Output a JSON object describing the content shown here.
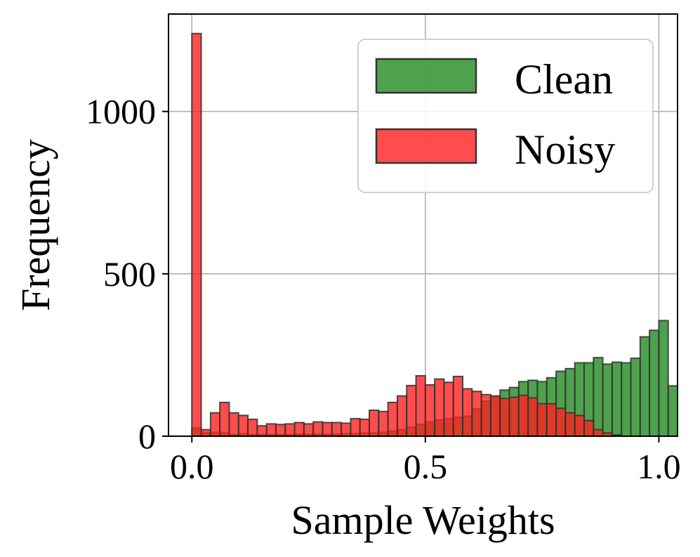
{
  "chart_data": {
    "type": "bar",
    "subtype": "overlapping-histogram",
    "xlabel": "Sample Weights",
    "ylabel": "Frequency",
    "xlim": [
      -0.05,
      1.04
    ],
    "ylim": [
      0,
      1300
    ],
    "xticks": [
      0.0,
      0.5,
      1.0
    ],
    "xtick_labels": [
      "0.0",
      "0.5",
      "1.0"
    ],
    "yticks": [
      0,
      500,
      1000
    ],
    "ytick_labels": [
      "0",
      "500",
      "1000"
    ],
    "grid": true,
    "legend": "top-right",
    "bin_start": 0.0,
    "bin_width": 0.02,
    "series": [
      {
        "name": "Clean",
        "color": "#228B22",
        "values": [
          25,
          10,
          12,
          10,
          5,
          8,
          5,
          5,
          5,
          5,
          5,
          6,
          6,
          6,
          6,
          6,
          8,
          8,
          10,
          10,
          12,
          16,
          20,
          28,
          36,
          44,
          50,
          54,
          58,
          62,
          84,
          108,
          122,
          142,
          150,
          168,
          172,
          168,
          180,
          200,
          208,
          226,
          226,
          242,
          222,
          228,
          226,
          240,
          306,
          326,
          356,
          155
        ]
      },
      {
        "name": "Noisy",
        "color": "#FF2020",
        "values": [
          1240,
          20,
          72,
          104,
          72,
          64,
          52,
          32,
          38,
          36,
          38,
          42,
          38,
          44,
          42,
          42,
          40,
          54,
          52,
          80,
          76,
          104,
          124,
          156,
          186,
          158,
          176,
          166,
          184,
          146,
          138,
          128,
          124,
          116,
          120,
          126,
          118,
          100,
          100,
          86,
          72,
          64,
          48,
          20,
          10,
          4,
          0,
          0,
          0,
          0,
          0,
          0
        ]
      }
    ]
  }
}
